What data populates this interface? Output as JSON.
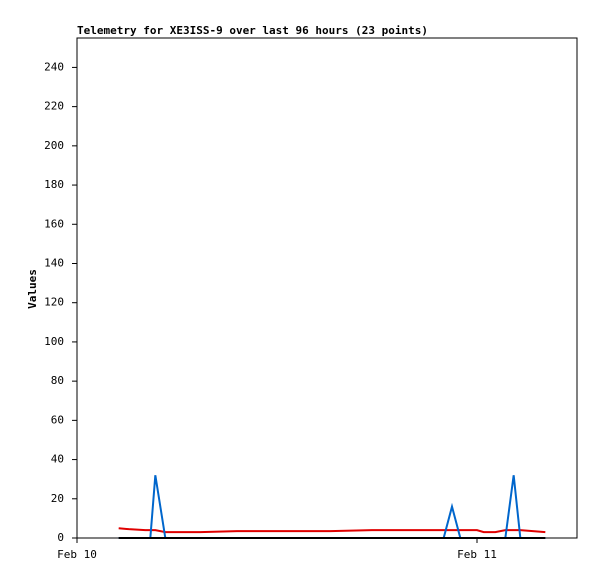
{
  "chart_data": {
    "type": "line",
    "title": "Telemetry for XE3ISS-9 over last 96 hours (23 points)",
    "y_label": "Values",
    "x": [
      2.5,
      3.1,
      4.1,
      4.4,
      4.7,
      5.3,
      7.4,
      9.6,
      12.2,
      15.2,
      17.7,
      19.4,
      21.8,
      22.0,
      22.5,
      23.0,
      24.0,
      24.4,
      25.1,
      25.7,
      26.2,
      26.6,
      28.1
    ],
    "series": [
      {
        "color": "#e00000",
        "values": [
          5,
          4.5,
          4,
          4,
          4,
          3,
          3,
          3.5,
          3.5,
          3.5,
          4,
          4,
          4,
          4,
          4,
          4,
          4,
          3,
          3,
          4,
          4,
          4,
          3
        ]
      },
      {
        "color": "#0066cc",
        "values": [
          0,
          0,
          0,
          0,
          32,
          0,
          0,
          0,
          0,
          0,
          0,
          0,
          0,
          0,
          16,
          0,
          0,
          0,
          0,
          0,
          32,
          0,
          0
        ]
      },
      {
        "color": "#000000",
        "values": [
          0,
          0,
          0,
          0,
          0,
          0,
          0,
          0,
          0,
          0,
          0,
          0,
          0,
          0,
          0,
          0,
          0,
          0,
          0,
          0,
          0,
          0,
          0
        ]
      }
    ],
    "xlim": [
      0,
      30
    ],
    "xticks": [
      {
        "value": 0,
        "label": "Feb 10"
      },
      {
        "value": 24,
        "label": "Feb 11"
      }
    ],
    "ylim": [
      0,
      255
    ],
    "yticks": [
      0,
      20,
      40,
      60,
      80,
      100,
      120,
      140,
      160,
      180,
      200,
      220,
      240
    ]
  }
}
